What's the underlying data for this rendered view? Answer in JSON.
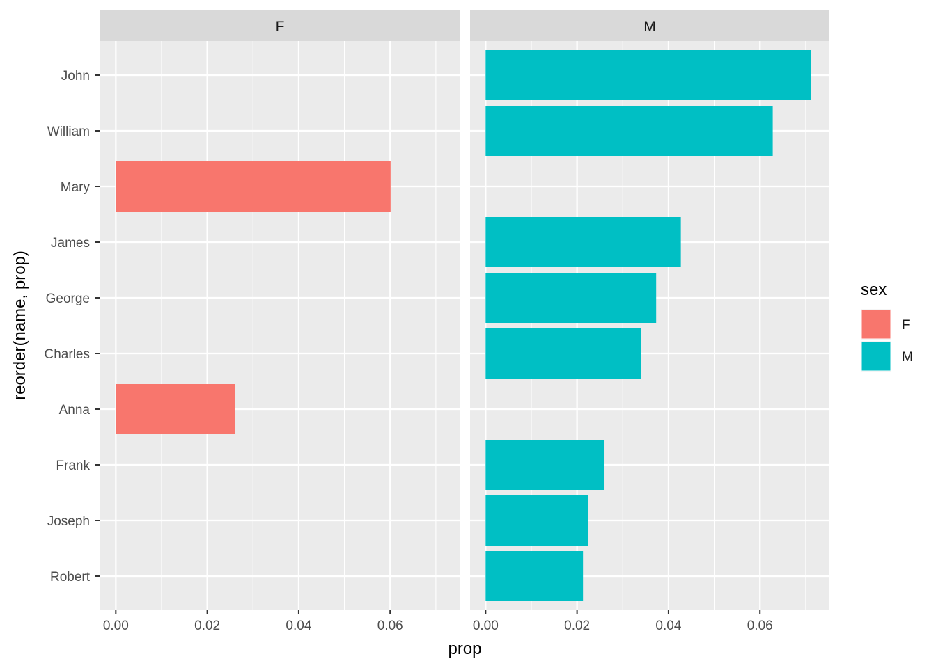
{
  "chart_data": {
    "type": "bar",
    "orientation": "horizontal",
    "facet_by": "sex",
    "xlabel": "prop",
    "ylabel": "reorder(name, prop)",
    "xlim": [
      -0.0034,
      0.0752
    ],
    "x_ticks": [
      0.0,
      0.02,
      0.04,
      0.06
    ],
    "x_tick_labels": [
      "0.00",
      "0.02",
      "0.04",
      "0.06"
    ],
    "categories": [
      "John",
      "William",
      "Mary",
      "James",
      "George",
      "Charles",
      "Anna",
      "Frank",
      "Joseph",
      "Robert"
    ],
    "panels": [
      {
        "name": "F",
        "color": "#F8766D",
        "bars": [
          {
            "name": "Mary",
            "value": 0.0601
          },
          {
            "name": "Anna",
            "value": 0.026
          }
        ]
      },
      {
        "name": "M",
        "color": "#00BFC4",
        "bars": [
          {
            "name": "John",
            "value": 0.0712
          },
          {
            "name": "William",
            "value": 0.0628
          },
          {
            "name": "James",
            "value": 0.0427
          },
          {
            "name": "George",
            "value": 0.0373
          },
          {
            "name": "Charles",
            "value": 0.034
          },
          {
            "name": "Frank",
            "value": 0.026
          },
          {
            "name": "Joseph",
            "value": 0.0224
          },
          {
            "name": "Robert",
            "value": 0.0213
          }
        ]
      }
    ],
    "legend": {
      "title": "sex",
      "position": "right",
      "entries": [
        {
          "label": "F",
          "color": "#F8766D"
        },
        {
          "label": "M",
          "color": "#00BFC4"
        }
      ]
    },
    "colors": {
      "panel_background": "#EBEBEB",
      "strip_background": "#D9D9D9",
      "grid": "#FFFFFF",
      "text": "#4D4D4D",
      "title_text": "#000000"
    }
  }
}
